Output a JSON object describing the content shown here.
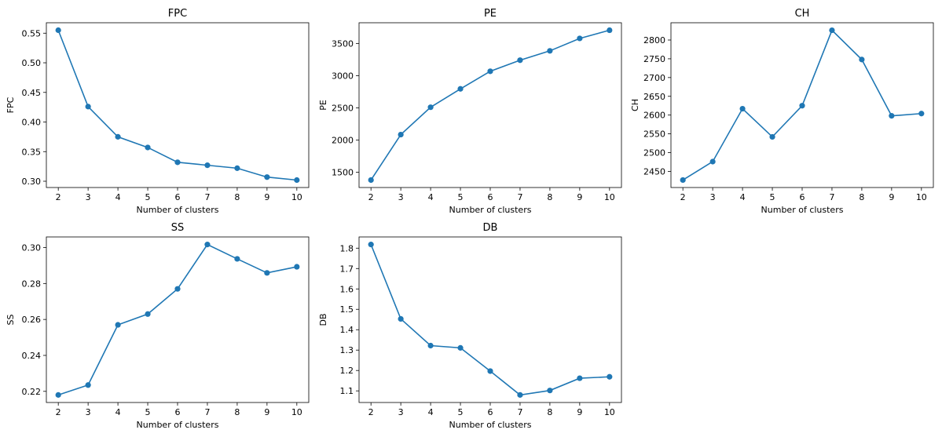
{
  "colors": {
    "series": "#1f77b4",
    "axis": "#000000"
  },
  "chart_data": [
    {
      "id": "fpc",
      "type": "line",
      "title": "FPC",
      "xlabel": "Number of clusters",
      "ylabel": "FPC",
      "x": [
        2,
        3,
        4,
        5,
        6,
        7,
        8,
        9,
        10
      ],
      "values": [
        0.555,
        0.426,
        0.375,
        0.357,
        0.332,
        0.327,
        0.322,
        0.307,
        0.302
      ],
      "xticks": [
        2,
        3,
        4,
        5,
        6,
        7,
        8,
        9,
        10
      ],
      "xtick_labels": [
        "2",
        "3",
        "4",
        "5",
        "6",
        "7",
        "8",
        "9",
        "10"
      ],
      "yticks": [
        0.3,
        0.35,
        0.4,
        0.45,
        0.5,
        0.55
      ],
      "ytick_labels": [
        "0.30",
        "0.35",
        "0.40",
        "0.45",
        "0.50",
        "0.55"
      ],
      "xlim": [
        1.6,
        10.4
      ],
      "ylim": [
        0.2894,
        0.5676
      ]
    },
    {
      "id": "pe",
      "type": "line",
      "title": "PE",
      "xlabel": "Number of clusters",
      "ylabel": "PE",
      "x": [
        2,
        3,
        4,
        5,
        6,
        7,
        8,
        9,
        10
      ],
      "values": [
        1380,
        2085,
        2510,
        2795,
        3068,
        3240,
        3385,
        3578,
        3705
      ],
      "xticks": [
        2,
        3,
        4,
        5,
        6,
        7,
        8,
        9,
        10
      ],
      "xtick_labels": [
        "2",
        "3",
        "4",
        "5",
        "6",
        "7",
        "8",
        "9",
        "10"
      ],
      "yticks": [
        1500,
        2000,
        2500,
        3000,
        3500
      ],
      "ytick_labels": [
        "1500",
        "2000",
        "2500",
        "3000",
        "3500"
      ],
      "xlim": [
        1.6,
        10.4
      ],
      "ylim": [
        1264,
        3821
      ]
    },
    {
      "id": "ch",
      "type": "line",
      "title": "CH",
      "xlabel": "Number of clusters",
      "ylabel": "CH",
      "x": [
        2,
        3,
        4,
        5,
        6,
        7,
        8,
        9,
        10
      ],
      "values": [
        2427,
        2476,
        2617,
        2542,
        2625,
        2826,
        2748,
        2598,
        2604
      ],
      "xticks": [
        2,
        3,
        4,
        5,
        6,
        7,
        8,
        9,
        10
      ],
      "xtick_labels": [
        "2",
        "3",
        "4",
        "5",
        "6",
        "7",
        "8",
        "9",
        "10"
      ],
      "yticks": [
        2450,
        2500,
        2550,
        2600,
        2650,
        2700,
        2750,
        2800
      ],
      "ytick_labels": [
        "2450",
        "2500",
        "2550",
        "2600",
        "2650",
        "2700",
        "2750",
        "2800"
      ],
      "xlim": [
        1.6,
        10.4
      ],
      "ylim": [
        2407,
        2846
      ]
    },
    {
      "id": "ss",
      "type": "line",
      "title": "SS",
      "xlabel": "Number of clusters",
      "ylabel": "SS",
      "x": [
        2,
        3,
        4,
        5,
        6,
        7,
        8,
        9,
        10
      ],
      "values": [
        0.218,
        0.2235,
        0.257,
        0.263,
        0.277,
        0.3017,
        0.2937,
        0.2859,
        0.2893
      ],
      "xticks": [
        2,
        3,
        4,
        5,
        6,
        7,
        8,
        9,
        10
      ],
      "xtick_labels": [
        "2",
        "3",
        "4",
        "5",
        "6",
        "7",
        "8",
        "9",
        "10"
      ],
      "yticks": [
        0.22,
        0.24,
        0.26,
        0.28,
        0.3
      ],
      "ytick_labels": [
        "0.22",
        "0.24",
        "0.26",
        "0.28",
        "0.30"
      ],
      "xlim": [
        1.6,
        10.4
      ],
      "ylim": [
        0.2138,
        0.3059
      ]
    },
    {
      "id": "db",
      "type": "line",
      "title": "DB",
      "xlabel": "Number of clusters",
      "ylabel": "DB",
      "x": [
        2,
        3,
        4,
        5,
        6,
        7,
        8,
        9,
        10
      ],
      "values": [
        1.818,
        1.453,
        1.322,
        1.311,
        1.197,
        1.08,
        1.102,
        1.162,
        1.169
      ],
      "xticks": [
        2,
        3,
        4,
        5,
        6,
        7,
        8,
        9,
        10
      ],
      "xtick_labels": [
        "2",
        "3",
        "4",
        "5",
        "6",
        "7",
        "8",
        "9",
        "10"
      ],
      "yticks": [
        1.1,
        1.2,
        1.3,
        1.4,
        1.5,
        1.6,
        1.7,
        1.8
      ],
      "ytick_labels": [
        "1.1",
        "1.2",
        "1.3",
        "1.4",
        "1.5",
        "1.6",
        "1.7",
        "1.8"
      ],
      "xlim": [
        1.6,
        10.4
      ],
      "ylim": [
        1.043,
        1.855
      ]
    }
  ]
}
